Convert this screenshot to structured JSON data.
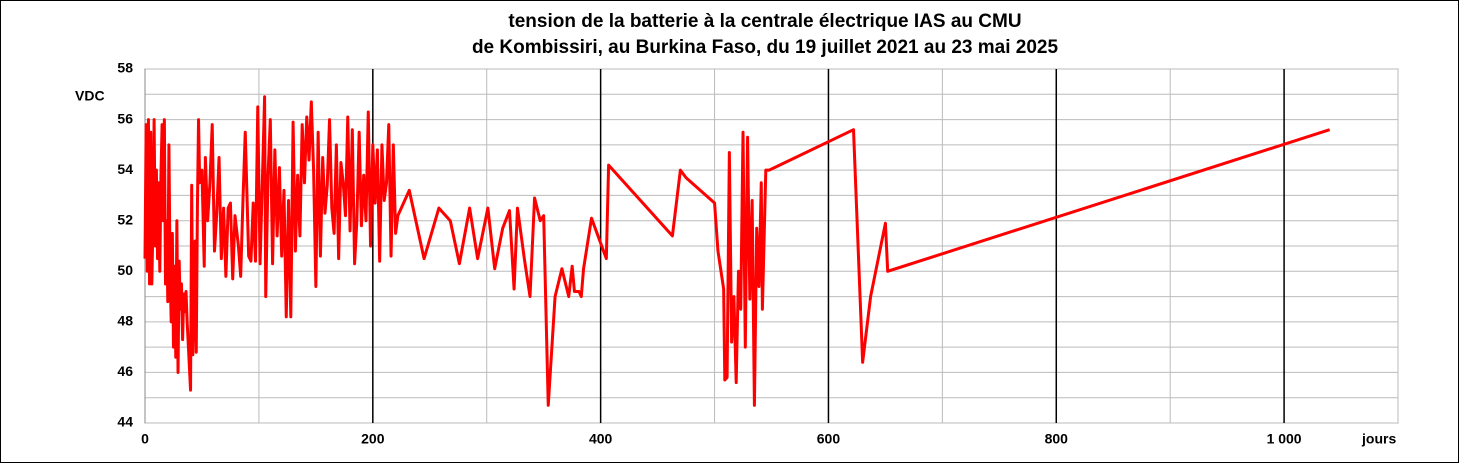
{
  "chart_data": {
    "type": "line",
    "title_lines": [
      "tension de la batterie à la centrale électrique IAS au CMU",
      "de Kombissiri, au Burkina Faso, du 19 juillet 2021 au 23 mai 2025"
    ],
    "y_label": "VDC",
    "x_label": "jours",
    "xlim": [
      0,
      1100
    ],
    "ylim": [
      44,
      58
    ],
    "xticks": [
      0,
      200,
      400,
      600,
      800,
      {
        "value": 1000,
        "label": "1 000"
      }
    ],
    "yticks": [
      44,
      46,
      48,
      50,
      52,
      54,
      56,
      58
    ],
    "x_minor_gridlines": [
      100,
      300,
      500,
      700,
      900,
      1100
    ],
    "y_minor_gridlines": [
      45,
      47,
      49,
      51,
      53,
      55,
      57
    ],
    "grid": true,
    "series": [
      {
        "name": "tension",
        "color": "#ff0000",
        "x": [
          0,
          1,
          2,
          3,
          4,
          5,
          6,
          7,
          8,
          9,
          10,
          11,
          12,
          13,
          14,
          15,
          16,
          17,
          18,
          19,
          20,
          21,
          22,
          23,
          24,
          25,
          26,
          27,
          28,
          29,
          30,
          31,
          32,
          33,
          34,
          35,
          36,
          37,
          40,
          41,
          42,
          44,
          45,
          46,
          47,
          48,
          50,
          52,
          53,
          55,
          57,
          59,
          61,
          63,
          65,
          67,
          69,
          71,
          73,
          75,
          77,
          79,
          82,
          84,
          86,
          88,
          91,
          93,
          95,
          97,
          99,
          101,
          103,
          105,
          106,
          108,
          110,
          112,
          114,
          116,
          118,
          120,
          122,
          124,
          126,
          128,
          130,
          132,
          134,
          136,
          138,
          140,
          142,
          144,
          146,
          148,
          150,
          152,
          154,
          156,
          158,
          160,
          162,
          164,
          166,
          168,
          170,
          172,
          174,
          176,
          178,
          180,
          182,
          184,
          186,
          188,
          190,
          192,
          194,
          196,
          198,
          200,
          202,
          204,
          206,
          208,
          210,
          212,
          214,
          216,
          218,
          220,
          222,
          232,
          245,
          258,
          268,
          276,
          285,
          292,
          301,
          307,
          314,
          320,
          324,
          327,
          333,
          338,
          342,
          347,
          350,
          354,
          360,
          366,
          372,
          375,
          377,
          381,
          383,
          385,
          392,
          405,
          407,
          463,
          470,
          475,
          500,
          503,
          508,
          509,
          511,
          513,
          515,
          517,
          519,
          521,
          523,
          525,
          527,
          529,
          531,
          533,
          535,
          537,
          539,
          541,
          542,
          545,
          548,
          622,
          630,
          637,
          650,
          652,
          1040
        ],
        "values": [
          50.5,
          55.8,
          50,
          56,
          49.5,
          55.5,
          49.5,
          52,
          56,
          51,
          54,
          50.5,
          53.5,
          50,
          53.8,
          55.8,
          52,
          56,
          49.5,
          52,
          48.8,
          55,
          50,
          48,
          51.5,
          47,
          50.2,
          46.6,
          52,
          46,
          50.4,
          48.5,
          49.5,
          47.3,
          49.1,
          48.4,
          49.2,
          48,
          45.3,
          53.4,
          46.7,
          51.2,
          46.8,
          52.5,
          56,
          53.5,
          54,
          50.2,
          54.5,
          52,
          53.5,
          55.8,
          50.8,
          52.3,
          54.5,
          50.5,
          52.5,
          49.8,
          52.5,
          52.7,
          49.7,
          52.2,
          51,
          49.8,
          52.8,
          55.5,
          50.6,
          50.4,
          52.7,
          50.4,
          56.5,
          50.3,
          53.5,
          56.9,
          49,
          53.8,
          56,
          50.3,
          54.8,
          51.4,
          54.1,
          50.6,
          53.2,
          48.2,
          52.8,
          48.2,
          55.9,
          50.8,
          53.8,
          51.4,
          55.8,
          53.5,
          56.1,
          54.4,
          56.7,
          54,
          49.4,
          55.5,
          50.6,
          54.5,
          52.3,
          53.4,
          56,
          52.5,
          51.5,
          55,
          50.5,
          54.3,
          53.5,
          52.2,
          56.1,
          51.6,
          55.6,
          50.3,
          52,
          55.5,
          51.8,
          53.8,
          52,
          56.3,
          51,
          55,
          52.7,
          54.8,
          50.4,
          55,
          52.8,
          53.5,
          55.8,
          50.6,
          55,
          51.5,
          52.2,
          53.2,
          50.5,
          52.5,
          52,
          50.3,
          52.5,
          50.5,
          52.5,
          50.1,
          51.7,
          52.4,
          49.3,
          52.5,
          50.5,
          49,
          52.9,
          52,
          52.2,
          44.7,
          49,
          50.1,
          49,
          50.2,
          49.2,
          49.2,
          49,
          50.1,
          52.1,
          50.5,
          54.2,
          51.4,
          54,
          53.7,
          52.7,
          50.8,
          49.3,
          45.7,
          45.8,
          54.7,
          47.2,
          49,
          45.6,
          50,
          48.5,
          55.5,
          47,
          55.3,
          48.9,
          52.8,
          44.7,
          51.7,
          49.4,
          53.5,
          48.5,
          54,
          54,
          55.6,
          46.4,
          49,
          51.9,
          50,
          55.6
        ]
      }
    ]
  }
}
